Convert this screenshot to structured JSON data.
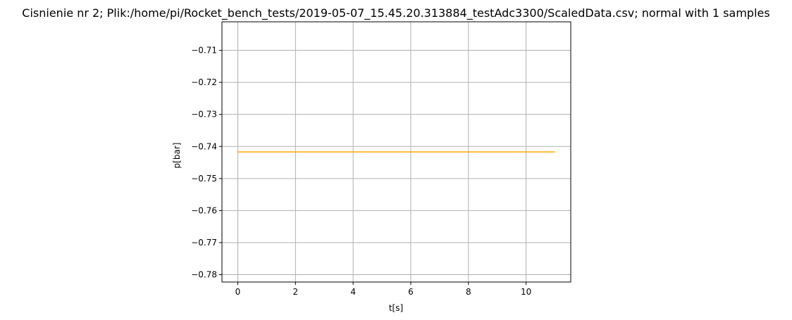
{
  "chart_data": {
    "type": "line",
    "title": "Cisnienie nr 2; Plik:/home/pi/Rocket_bench_tests/2019-05-07_15.45.20.313884_testAdc3300/ScaledData.csv; normal with 1 samples",
    "xlabel": "t[s]",
    "ylabel": "p[bar]",
    "xlim": [
      -0.55,
      11.55
    ],
    "ylim": [
      -0.7823,
      -0.7011
    ],
    "x_ticks": [
      0,
      2,
      4,
      6,
      8,
      10
    ],
    "x_tick_labels": [
      "0",
      "2",
      "4",
      "6",
      "8",
      "10"
    ],
    "y_ticks": [
      -0.71,
      -0.72,
      -0.73,
      -0.74,
      -0.75,
      -0.76,
      -0.77,
      -0.78
    ],
    "y_tick_labels": [
      "−0.71",
      "−0.72",
      "−0.73",
      "−0.74",
      "−0.75",
      "−0.76",
      "−0.77",
      "−0.78"
    ],
    "grid": true,
    "series": [
      {
        "color": "#ffa500",
        "x": [
          0,
          11
        ],
        "y": [
          -0.7417,
          -0.7417
        ]
      }
    ]
  }
}
